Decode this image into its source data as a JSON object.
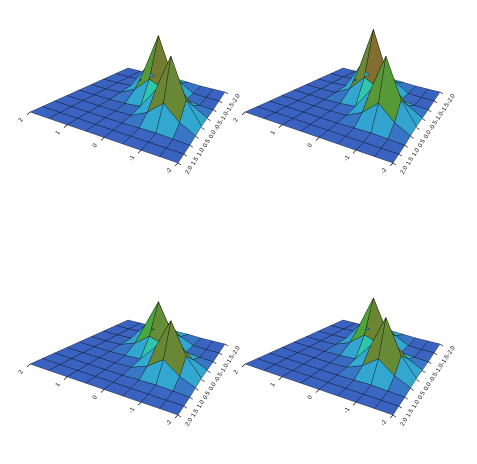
{
  "chart_data": [
    {
      "type": "surface",
      "x": [
        -2,
        -1.5,
        -1,
        -0.5,
        0,
        0.5,
        1,
        1.5,
        2
      ],
      "y": [
        -2,
        -1.5,
        -1,
        -0.5,
        0,
        0.5,
        1,
        1.5,
        2
      ],
      "z": [
        [
          0,
          0,
          0,
          0.01,
          0.02,
          0.01,
          0,
          0,
          0
        ],
        [
          0,
          0,
          0.01,
          0.13,
          0.35,
          0.13,
          0.01,
          0,
          0
        ],
        [
          0,
          0.01,
          0.04,
          0.36,
          0.95,
          0.35,
          0.02,
          0,
          0
        ],
        [
          0.01,
          0.14,
          0.38,
          0.27,
          0.36,
          0.13,
          0.01,
          0,
          0
        ],
        [
          0.02,
          0.37,
          1,
          0.38,
          0.04,
          0.01,
          0,
          0,
          0
        ],
        [
          0.01,
          0.14,
          0.37,
          0.14,
          0.01,
          0,
          0,
          0,
          0
        ],
        [
          0,
          0.01,
          0.02,
          0.01,
          0,
          0,
          0,
          0,
          0
        ],
        [
          0,
          0,
          0,
          0,
          0,
          0,
          0,
          0,
          0
        ],
        [
          0,
          0,
          0,
          0,
          0,
          0,
          0,
          0,
          0
        ]
      ],
      "xlim": [
        -2,
        2
      ],
      "xticks": [
        -2,
        -1,
        0,
        1,
        2
      ],
      "ylim": [
        -2,
        2
      ],
      "yticks": [
        {
          "value": -2,
          "label": "-2.0"
        },
        {
          "value": -1.5,
          "label": "-1.5"
        },
        {
          "value": -1,
          "label": "-1.0"
        },
        {
          "value": -0.5,
          "label": "-0.5"
        },
        {
          "value": 0,
          "label": "0.0"
        },
        {
          "value": 0.5,
          "label": "0.5"
        },
        {
          "value": 1,
          "label": "1.0"
        },
        {
          "value": 1.5,
          "label": "1.5"
        },
        {
          "value": 2,
          "label": "2.0"
        }
      ],
      "colormap": [
        "#3a62c0",
        "#2ec8d8",
        "#30c040",
        "#d02020",
        "#e07020",
        "#f0e040"
      ]
    },
    {
      "type": "surface",
      "x": [
        -2,
        -1.5,
        -1,
        -0.5,
        0,
        0.5,
        1,
        1.5,
        2
      ],
      "y": [
        -2,
        -1.5,
        -1,
        -0.5,
        0,
        0.5,
        1,
        1.5,
        2
      ],
      "z": [
        [
          0,
          0,
          0,
          0.01,
          0.02,
          0.01,
          0,
          0,
          0
        ],
        [
          0,
          0,
          0.01,
          0.14,
          0.39,
          0.14,
          0.01,
          0,
          0
        ],
        [
          0,
          0.01,
          0.04,
          0.39,
          1.05,
          0.39,
          0.02,
          0,
          0
        ],
        [
          0.01,
          0.14,
          0.38,
          0.28,
          0.39,
          0.14,
          0.01,
          0,
          0
        ],
        [
          0.02,
          0.37,
          1,
          0.38,
          0.04,
          0.01,
          0,
          0,
          0
        ],
        [
          0.01,
          0.14,
          0.37,
          0.14,
          0.01,
          0,
          0,
          0,
          0
        ],
        [
          0,
          0.01,
          0.02,
          0.01,
          0,
          0,
          0,
          0,
          0
        ],
        [
          0,
          0,
          0,
          0,
          0,
          0,
          0,
          0,
          0
        ],
        [
          0,
          0,
          0,
          0,
          0,
          0,
          0,
          0,
          0
        ]
      ],
      "xlim": [
        -2,
        2
      ],
      "xticks": [
        -2,
        -1,
        0,
        1,
        2
      ],
      "ylim": [
        -2,
        2
      ],
      "yticks": [
        {
          "value": -2,
          "label": "-2.0"
        },
        {
          "value": -1.5,
          "label": "-1.5"
        },
        {
          "value": -1,
          "label": "-1.0"
        },
        {
          "value": -0.5,
          "label": "-0.5"
        },
        {
          "value": 0,
          "label": "0.0"
        },
        {
          "value": 0.5,
          "label": "0.5"
        },
        {
          "value": 1,
          "label": "1.0"
        },
        {
          "value": 1.5,
          "label": "1.5"
        },
        {
          "value": 2,
          "label": "2.0"
        }
      ],
      "colormap": [
        "#3a62c0",
        "#2ec8d8",
        "#30c040",
        "#d02020",
        "#e07020",
        "#f0e040"
      ]
    },
    {
      "type": "surface",
      "x": [
        -2,
        -1.5,
        -1,
        -0.5,
        0,
        0.5,
        1,
        1.5,
        2
      ],
      "y": [
        -2,
        -1.5,
        -1,
        -0.5,
        0,
        0.5,
        1,
        1.5,
        2
      ],
      "z": [
        [
          0,
          0,
          0,
          0.01,
          0.01,
          0.01,
          0,
          0,
          0
        ],
        [
          0,
          0,
          0.01,
          0.1,
          0.27,
          0.1,
          0.01,
          0,
          0
        ],
        [
          0,
          0.01,
          0.03,
          0.28,
          0.72,
          0.27,
          0.01,
          0,
          0
        ],
        [
          0.01,
          0.11,
          0.3,
          0.21,
          0.28,
          0.1,
          0.01,
          0,
          0
        ],
        [
          0.02,
          0.3,
          0.8,
          0.3,
          0.03,
          0.01,
          0,
          0,
          0
        ],
        [
          0.01,
          0.11,
          0.3,
          0.11,
          0.01,
          0,
          0,
          0,
          0
        ],
        [
          0,
          0.01,
          0.02,
          0.01,
          0,
          0,
          0,
          0,
          0
        ],
        [
          0,
          0,
          0,
          0,
          0,
          0,
          0,
          0,
          0
        ],
        [
          0,
          0,
          0,
          0,
          0,
          0,
          0,
          0,
          0
        ]
      ],
      "xlim": [
        -2,
        2
      ],
      "xticks": [
        -2,
        -1,
        0,
        1,
        2
      ],
      "ylim": [
        -2,
        2
      ],
      "yticks": [
        {
          "value": -2,
          "label": "-2.0"
        },
        {
          "value": -1.5,
          "label": "-1.5"
        },
        {
          "value": -1,
          "label": "-1.0"
        },
        {
          "value": -0.5,
          "label": "-0.5"
        },
        {
          "value": 0,
          "label": "0.0"
        },
        {
          "value": 0.5,
          "label": "0.5"
        },
        {
          "value": 1,
          "label": "1.0"
        },
        {
          "value": 1.5,
          "label": "1.5"
        },
        {
          "value": 2,
          "label": "2.0"
        }
      ],
      "colormap": [
        "#3a62c0",
        "#2ec8d8",
        "#30c040",
        "#d02020",
        "#e07020",
        "#f0e040"
      ]
    },
    {
      "type": "surface",
      "x": [
        -2,
        -1.5,
        -1,
        -0.5,
        0,
        0.5,
        1,
        1.5,
        2
      ],
      "y": [
        -2,
        -1.5,
        -1,
        -0.5,
        0,
        0.5,
        1,
        1.5,
        2
      ],
      "z": [
        [
          0,
          0,
          0,
          0.01,
          0.02,
          0.01,
          0,
          0,
          0
        ],
        [
          0,
          0,
          0.01,
          0.11,
          0.29,
          0.11,
          0.01,
          0,
          0
        ],
        [
          0,
          0.01,
          0.03,
          0.3,
          0.78,
          0.29,
          0.01,
          0,
          0
        ],
        [
          0.01,
          0.12,
          0.32,
          0.23,
          0.3,
          0.11,
          0.01,
          0,
          0
        ],
        [
          0.02,
          0.31,
          0.85,
          0.32,
          0.03,
          0.01,
          0,
          0,
          0
        ],
        [
          0.01,
          0.12,
          0.31,
          0.12,
          0.01,
          0,
          0,
          0,
          0
        ],
        [
          0,
          0.01,
          0.02,
          0.01,
          0,
          0,
          0,
          0,
          0
        ],
        [
          0,
          0,
          0,
          0,
          0,
          0,
          0,
          0,
          0
        ],
        [
          0,
          0,
          0,
          0,
          0,
          0,
          0,
          0,
          0
        ]
      ],
      "xlim": [
        -2,
        2
      ],
      "xticks": [
        -2,
        -1,
        0,
        1,
        2
      ],
      "ylim": [
        -2,
        2
      ],
      "yticks": [
        {
          "value": -2,
          "label": "-2.0"
        },
        {
          "value": -1.5,
          "label": "-1.5"
        },
        {
          "value": -1,
          "label": "-1.0"
        },
        {
          "value": -0.5,
          "label": "-0.5"
        },
        {
          "value": 0,
          "label": "0.0"
        },
        {
          "value": 0.5,
          "label": "0.5"
        },
        {
          "value": 1,
          "label": "1.0"
        },
        {
          "value": 1.5,
          "label": "1.5"
        },
        {
          "value": 2,
          "label": "2.0"
        }
      ],
      "colormap": [
        "#3a62c0",
        "#2ec8d8",
        "#30c040",
        "#d02020",
        "#e07020",
        "#f0e040"
      ]
    }
  ]
}
